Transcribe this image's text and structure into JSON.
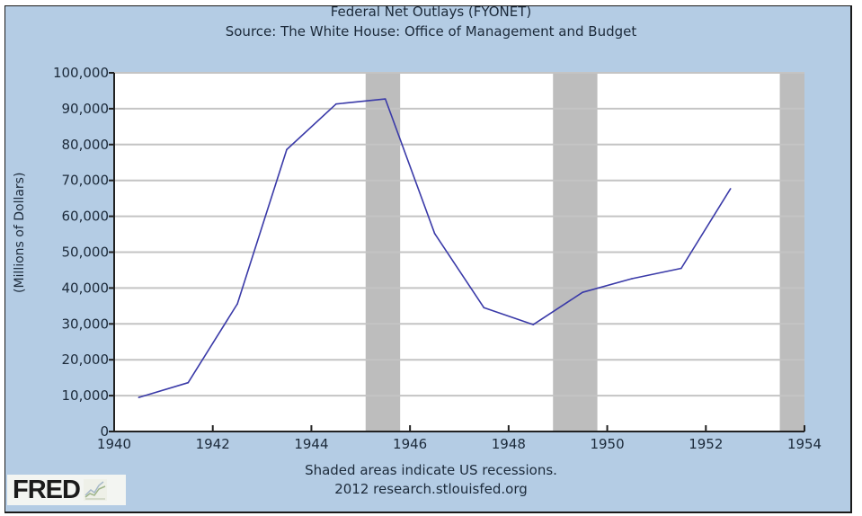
{
  "chart_data": {
    "type": "line",
    "title": "Federal Net Outlays (FYONET)",
    "subtitle": "Source: The White House: Office of Management and Budget",
    "xlabel": "",
    "ylabel": "(Millions of Dollars)",
    "xlim": [
      1940,
      1954
    ],
    "ylim": [
      0,
      100000
    ],
    "x_ticks": [
      1940,
      1942,
      1944,
      1946,
      1948,
      1950,
      1952,
      1954
    ],
    "x_tick_labels": [
      "1940",
      "1942",
      "1944",
      "1946",
      "1948",
      "1950",
      "1952",
      "1954"
    ],
    "y_ticks": [
      0,
      10000,
      20000,
      30000,
      40000,
      50000,
      60000,
      70000,
      80000,
      90000,
      100000
    ],
    "y_tick_labels": [
      "0",
      "10,000",
      "20,000",
      "30,000",
      "40,000",
      "50,000",
      "60,000",
      "70,000",
      "80,000",
      "90,000",
      "100,000"
    ],
    "grid": true,
    "series": [
      {
        "name": "FYONET",
        "color": "#3a3aa8",
        "x": [
          1940.5,
          1941.5,
          1942.5,
          1943.5,
          1944.5,
          1945.5,
          1946.5,
          1947.5,
          1948.5,
          1949.5,
          1950.5,
          1951.5,
          1952.5
        ],
        "values": [
          9500,
          13600,
          35600,
          78600,
          91300,
          92700,
          55200,
          34500,
          29800,
          38800,
          42600,
          45500,
          67700
        ]
      }
    ],
    "recessions": [
      {
        "start": 1945.1,
        "end": 1945.8
      },
      {
        "start": 1948.9,
        "end": 1949.8
      },
      {
        "start": 1953.5,
        "end": 1954.0
      }
    ],
    "recession_color": "#bdbdbd",
    "annotations": [
      "Shaded areas indicate US recessions.",
      "2012 research.stlouisfed.org"
    ]
  },
  "footer": {
    "note": "Shaded areas indicate US recessions.",
    "credit": "2012 research.stlouisfed.org",
    "logo_text": "FRED"
  },
  "colors": {
    "background": "#b4cce4",
    "plot_background": "#ffffff",
    "grid": "#c4c4c4",
    "line": "#3a3aa8",
    "text": "#1c2a3a"
  }
}
